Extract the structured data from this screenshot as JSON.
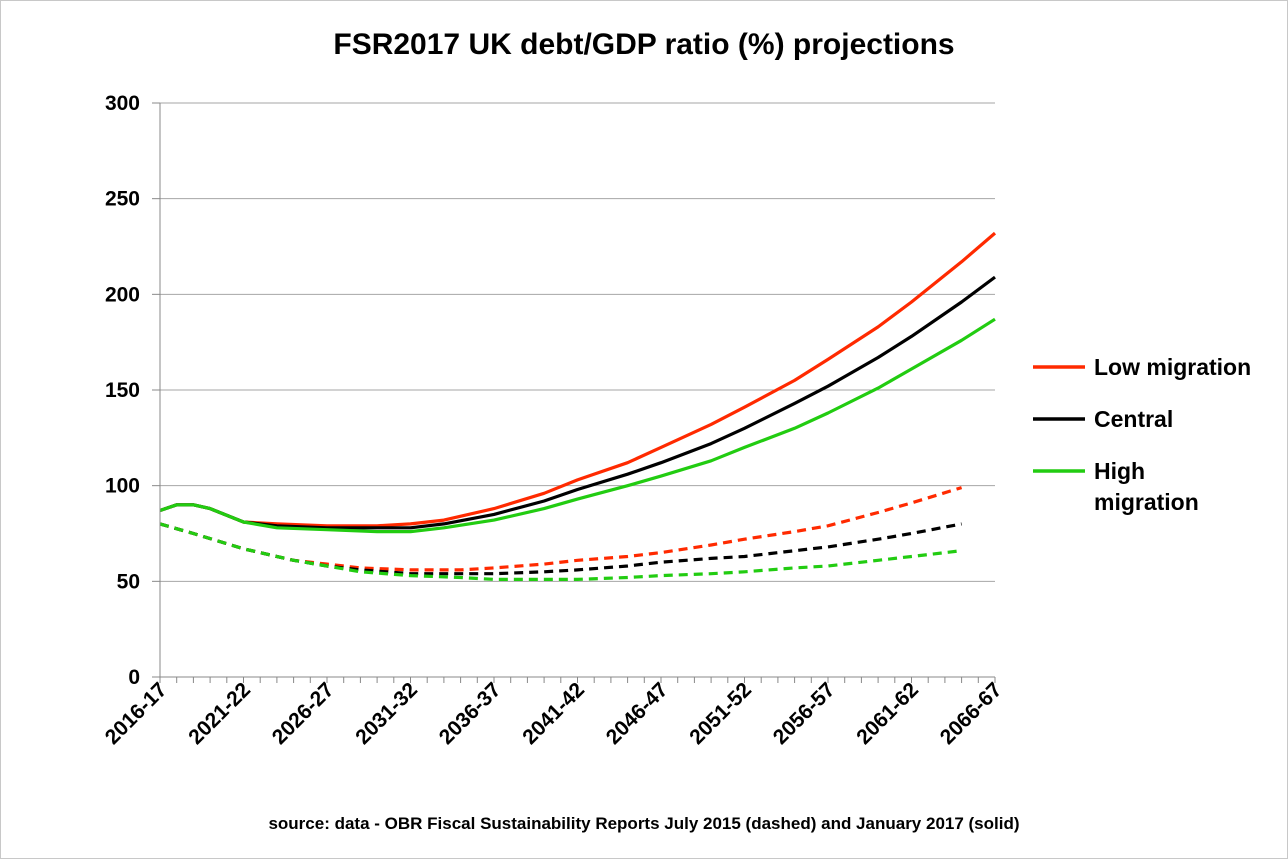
{
  "chart_data": {
    "type": "line",
    "title": "FSR2017 UK debt/GDP ratio (%) projections",
    "xlabel": "",
    "ylabel": "",
    "ylim": [
      0,
      300
    ],
    "yticks": [
      "0",
      "50",
      "100",
      "150",
      "200",
      "250",
      "300"
    ],
    "grid": true,
    "legend_position": "right",
    "x_tick_labels": [
      "2016-17",
      "2021-22",
      "2026-27",
      "2031-32",
      "2036-37",
      "2041-42",
      "2046-47",
      "2051-52",
      "2056-57",
      "2061-62",
      "2066-67"
    ],
    "x_start_year": 2016,
    "x_end_year": 2066,
    "x_tick_step": 5,
    "source_note": "source: data - OBR Fiscal Sustainability Reports July 2015 (dashed) and January 2017 (solid)",
    "legend": [
      {
        "label": "Low migration",
        "color": "#ff2a00"
      },
      {
        "label": "Central",
        "color": "#000000"
      },
      {
        "label": "High",
        "label2": "migration",
        "color": "#22cc11"
      }
    ],
    "series": [
      {
        "name": "Low migration",
        "source": "January 2017 (solid)",
        "style": "solid",
        "color": "#ff2a00",
        "x": [
          2016,
          2017,
          2018,
          2019,
          2021,
          2023,
          2026,
          2029,
          2031,
          2033,
          2036,
          2039,
          2041,
          2044,
          2046,
          2049,
          2051,
          2054,
          2056,
          2059,
          2061,
          2064,
          2066
        ],
        "values": [
          87,
          90,
          90,
          88,
          81,
          80,
          79,
          79,
          80,
          82,
          88,
          96,
          103,
          112,
          120,
          132,
          141,
          155,
          166,
          183,
          196,
          217,
          232
        ]
      },
      {
        "name": "Central",
        "source": "January 2017 (solid)",
        "style": "solid",
        "color": "#000000",
        "x": [
          2016,
          2017,
          2018,
          2019,
          2021,
          2023,
          2026,
          2029,
          2031,
          2033,
          2036,
          2039,
          2041,
          2044,
          2046,
          2049,
          2051,
          2054,
          2056,
          2059,
          2061,
          2064,
          2066
        ],
        "values": [
          87,
          90,
          90,
          88,
          81,
          79,
          78,
          78,
          78,
          80,
          85,
          92,
          98,
          106,
          112,
          122,
          130,
          143,
          152,
          167,
          178,
          196,
          209
        ]
      },
      {
        "name": "High migration",
        "source": "January 2017 (solid)",
        "style": "solid",
        "color": "#22cc11",
        "x": [
          2016,
          2017,
          2018,
          2019,
          2021,
          2023,
          2026,
          2029,
          2031,
          2033,
          2036,
          2039,
          2041,
          2044,
          2046,
          2049,
          2051,
          2054,
          2056,
          2059,
          2061,
          2064,
          2066
        ],
        "values": [
          87,
          90,
          90,
          88,
          81,
          78,
          77,
          76,
          76,
          78,
          82,
          88,
          93,
          100,
          105,
          113,
          120,
          130,
          138,
          151,
          161,
          176,
          187
        ]
      },
      {
        "name": "Low migration",
        "source": "July 2015 (dashed)",
        "style": "dashed",
        "color": "#ff2a00",
        "x": [
          2016,
          2018,
          2021,
          2024,
          2026,
          2028,
          2031,
          2034,
          2036,
          2039,
          2041,
          2044,
          2046,
          2049,
          2051,
          2054,
          2056,
          2059,
          2061,
          2064
        ],
        "values": [
          80,
          75,
          67,
          61,
          59,
          57,
          56,
          56,
          57,
          59,
          61,
          63,
          65,
          69,
          72,
          76,
          79,
          86,
          91,
          99
        ]
      },
      {
        "name": "Central",
        "source": "July 2015 (dashed)",
        "style": "dashed",
        "color": "#000000",
        "x": [
          2016,
          2018,
          2021,
          2024,
          2026,
          2028,
          2031,
          2034,
          2036,
          2039,
          2041,
          2044,
          2046,
          2049,
          2051,
          2054,
          2056,
          2059,
          2061,
          2064
        ],
        "values": [
          80,
          75,
          67,
          61,
          58,
          56,
          54,
          54,
          54,
          55,
          56,
          58,
          60,
          62,
          63,
          66,
          68,
          72,
          75,
          80
        ]
      },
      {
        "name": "High migration",
        "source": "July 2015 (dashed)",
        "style": "dashed",
        "color": "#22cc11",
        "x": [
          2016,
          2018,
          2021,
          2024,
          2026,
          2028,
          2031,
          2034,
          2036,
          2039,
          2041,
          2044,
          2046,
          2049,
          2051,
          2054,
          2056,
          2059,
          2061,
          2064
        ],
        "values": [
          80,
          75,
          67,
          61,
          58,
          55,
          53,
          52,
          51,
          51,
          51,
          52,
          53,
          54,
          55,
          57,
          58,
          61,
          63,
          66
        ]
      }
    ]
  }
}
